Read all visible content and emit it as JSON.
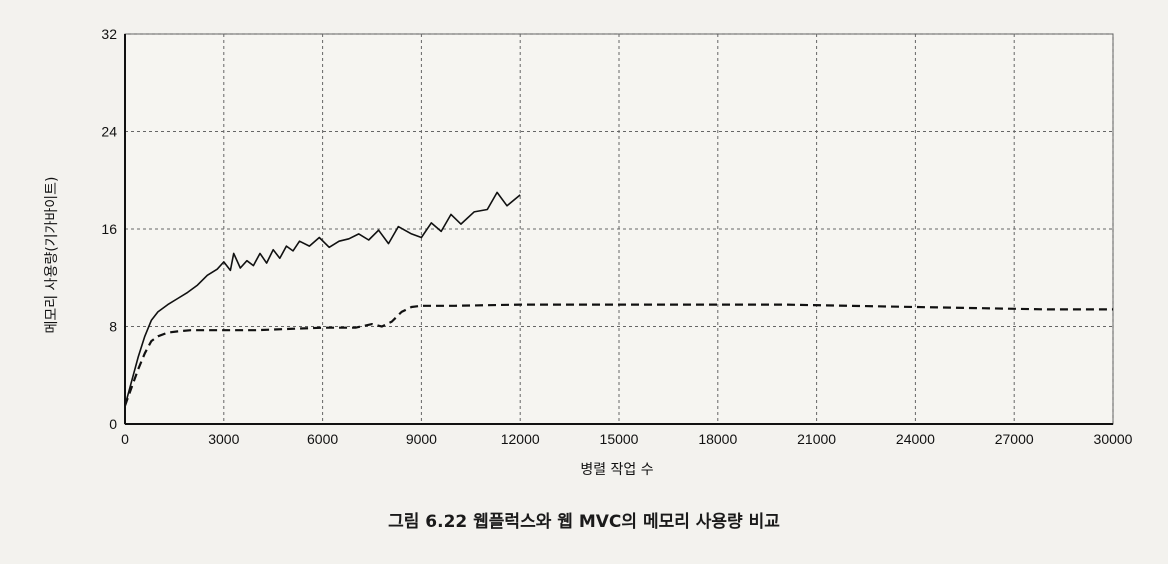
{
  "caption": "그림 6.22 웹플럭스와 웹 MVC의 메모리 사용량 비교",
  "chart_data": {
    "type": "line",
    "title": "",
    "xlabel": "병렬 작업 수",
    "ylabel": "메모리 사용량(기가바이트)",
    "xlim": [
      0,
      30000
    ],
    "ylim": [
      0,
      32
    ],
    "x_ticks": [
      0,
      3000,
      6000,
      9000,
      12000,
      15000,
      18000,
      21000,
      24000,
      27000,
      30000
    ],
    "y_ticks": [
      0,
      8,
      16,
      24,
      32
    ],
    "x_tick_labels": [
      "0",
      "3000",
      "6000",
      "9000",
      "12000",
      "15000",
      "18000",
      "21000",
      "24000",
      "27000",
      "30000"
    ],
    "y_tick_labels": [
      "0",
      "8",
      "16",
      "24",
      "32"
    ],
    "grid": true,
    "legend": "none",
    "series": [
      {
        "style": "solid",
        "color": "#111111",
        "x": [
          0,
          200,
          400,
          600,
          800,
          1000,
          1300,
          1600,
          1900,
          2200,
          2500,
          2800,
          3000,
          3200,
          3300,
          3500,
          3700,
          3900,
          4100,
          4300,
          4500,
          4700,
          4900,
          5100,
          5300,
          5600,
          5900,
          6200,
          6500,
          6800,
          7100,
          7400,
          7700,
          8000,
          8300,
          8700,
          9000,
          9300,
          9600,
          9900,
          10200,
          10600,
          11000,
          11300,
          11600,
          12000
        ],
        "y": [
          1.5,
          3.5,
          5.5,
          7.2,
          8.5,
          9.2,
          9.8,
          10.3,
          10.8,
          11.4,
          12.2,
          12.7,
          13.3,
          12.6,
          14.0,
          12.8,
          13.4,
          13.0,
          14.0,
          13.2,
          14.3,
          13.6,
          14.6,
          14.2,
          15.0,
          14.6,
          15.3,
          14.5,
          15.0,
          15.2,
          15.6,
          15.1,
          15.9,
          14.8,
          16.2,
          15.6,
          15.3,
          16.5,
          15.8,
          17.2,
          16.4,
          17.4,
          17.6,
          19.0,
          17.9,
          18.8
        ]
      },
      {
        "style": "dashed",
        "color": "#111111",
        "x": [
          0,
          200,
          400,
          600,
          800,
          1000,
          1300,
          1600,
          2000,
          3000,
          4000,
          5000,
          6000,
          7000,
          7500,
          7800,
          8100,
          8400,
          8700,
          9000,
          10000,
          12000,
          14000,
          16000,
          18000,
          20000,
          22000,
          24000,
          26000,
          28000,
          30000
        ],
        "y": [
          1.5,
          3.0,
          4.5,
          5.8,
          6.8,
          7.2,
          7.5,
          7.6,
          7.7,
          7.7,
          7.7,
          7.8,
          7.9,
          7.9,
          8.2,
          8.0,
          8.4,
          9.2,
          9.6,
          9.7,
          9.7,
          9.8,
          9.8,
          9.8,
          9.8,
          9.8,
          9.7,
          9.6,
          9.5,
          9.4,
          9.4
        ]
      }
    ]
  }
}
